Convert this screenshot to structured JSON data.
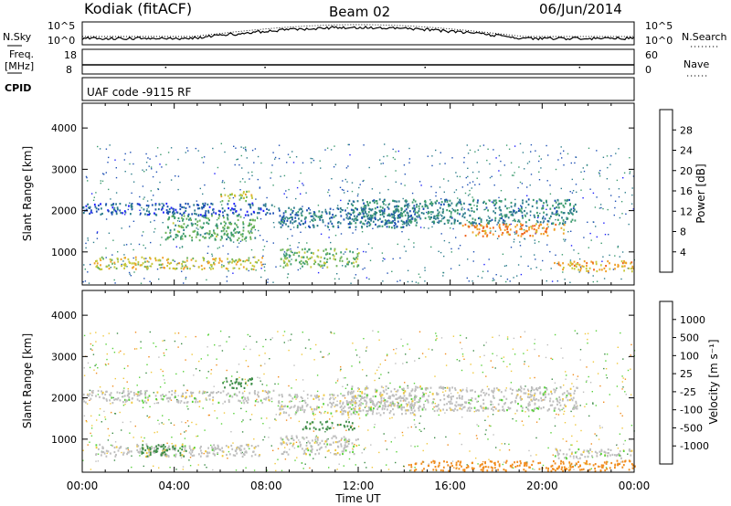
{
  "header": {
    "station": "Kodiak (fitACF)",
    "beam": "Beam 02",
    "date": "06/Jun/2014"
  },
  "top_panels": {
    "nsky": {
      "left_label": "N.Sky",
      "right_label": "N.Search",
      "top_tick": "10^5",
      "bottom_tick": "10^0"
    },
    "freq": {
      "left_label": "Freq.",
      "unit": "[MHz]",
      "ticks_left": [
        "18",
        "8"
      ],
      "right_label": "Nave",
      "ticks_right": [
        "60",
        "0"
      ]
    },
    "cpid": {
      "label": "CPID",
      "text": "UAF code -9115 RF"
    }
  },
  "x_axis": {
    "label": "Time UT",
    "ticks": [
      "00:00",
      "04:00",
      "08:00",
      "12:00",
      "16:00",
      "20:00",
      "00:00"
    ]
  },
  "power_colorbar": {
    "label": "Power [dB]",
    "ticks": [
      "28",
      "24",
      "20",
      "16",
      "12",
      "8",
      "4"
    ]
  },
  "velocity_colorbar": {
    "label": "Velocity [m s⁻¹]",
    "ticks": [
      "1000",
      "500",
      "100",
      "25",
      "-25",
      "-100",
      "-500",
      "-1000"
    ]
  },
  "colors": {
    "power": [
      "#1e1eff",
      "#1e50b4",
      "#2d7d8c",
      "#3c9b6e",
      "#6eb45a",
      "#c8c83c",
      "#f0a028",
      "#f0641e",
      "#dc1e14"
    ],
    "velocity": [
      "#e61414",
      "#f05014",
      "#f08c1e",
      "#f0c83c",
      "#bebebe",
      "#bebebe",
      "#5ad23c",
      "#3c8c46",
      "#2864a0",
      "#1e3cc8"
    ]
  },
  "chart_data": [
    {
      "type": "heatmap",
      "title": "Power",
      "xlabel": "Time UT",
      "ylabel": "Slant Range [km]",
      "xlim": [
        0,
        24
      ],
      "ylim": [
        200,
        4600
      ],
      "yticks": [
        1000,
        2000,
        3000,
        4000
      ],
      "xticks": [
        "00:00",
        "04:00",
        "08:00",
        "12:00",
        "16:00",
        "20:00",
        "00:00"
      ],
      "colorbar": {
        "label": "Power [dB]",
        "range": [
          0,
          32
        ],
        "ticks": [
          4,
          8,
          12,
          16,
          20,
          24,
          28
        ]
      },
      "echo_bands": [
        {
          "t": [
            0,
            8.3
          ],
          "range_km": [
            1900,
            2200
          ],
          "power_db": 6
        },
        {
          "t": [
            3.5,
            7.5
          ],
          "range_km": [
            1300,
            1900
          ],
          "power_db": 14
        },
        {
          "t": [
            6.0,
            7.4
          ],
          "range_km": [
            2250,
            2500
          ],
          "power_db": 18
        },
        {
          "t": [
            0.5,
            7.8
          ],
          "range_km": [
            600,
            900
          ],
          "power_db": 20
        },
        {
          "t": [
            8.5,
            14.5
          ],
          "range_km": [
            1600,
            2100
          ],
          "power_db": 8
        },
        {
          "t": [
            8.6,
            12.0
          ],
          "range_km": [
            650,
            1100
          ],
          "power_db": 16
        },
        {
          "t": [
            11.5,
            21.5
          ],
          "range_km": [
            1700,
            2300
          ],
          "power_db": 10
        },
        {
          "t": [
            16.5,
            21.0
          ],
          "range_km": [
            1400,
            1700
          ],
          "power_db": 24
        },
        {
          "t": [
            20.5,
            24.0
          ],
          "range_km": [
            550,
            800
          ],
          "power_db": 22
        }
      ]
    },
    {
      "type": "heatmap",
      "title": "Velocity",
      "xlabel": "Time UT",
      "ylabel": "Slant Range [km]",
      "xlim": [
        0,
        24
      ],
      "ylim": [
        200,
        4600
      ],
      "yticks": [
        1000,
        2000,
        3000,
        4000
      ],
      "xticks": [
        "00:00",
        "04:00",
        "08:00",
        "12:00",
        "16:00",
        "20:00",
        "00:00"
      ],
      "colorbar": {
        "label": "Velocity [m s⁻¹]",
        "ticks": [
          1000,
          500,
          100,
          25,
          -25,
          -100,
          -500,
          -1000
        ]
      },
      "echo_bands": [
        {
          "t": [
            0,
            8.3
          ],
          "range_km": [
            1900,
            2200
          ],
          "velocity": 0
        },
        {
          "t": [
            0.5,
            7.8
          ],
          "range_km": [
            600,
            900
          ],
          "velocity": 0
        },
        {
          "t": [
            2.5,
            4.5
          ],
          "range_km": [
            600,
            900
          ],
          "velocity": 200
        },
        {
          "t": [
            6.0,
            7.4
          ],
          "range_km": [
            2250,
            2500
          ],
          "velocity": 150
        },
        {
          "t": [
            8.5,
            14.5
          ],
          "range_km": [
            1600,
            2100
          ],
          "velocity": 0
        },
        {
          "t": [
            8.6,
            12.0
          ],
          "range_km": [
            650,
            1100
          ],
          "velocity": 0
        },
        {
          "t": [
            9.5,
            11.8
          ],
          "range_km": [
            1250,
            1450
          ],
          "velocity": 150
        },
        {
          "t": [
            11.5,
            21.5
          ],
          "range_km": [
            1700,
            2300
          ],
          "velocity": 0
        },
        {
          "t": [
            20.5,
            24.0
          ],
          "range_km": [
            550,
            800
          ],
          "velocity": 0
        },
        {
          "t": [
            14.0,
            24.0
          ],
          "range_km": [
            250,
            500
          ],
          "velocity": -200
        }
      ]
    }
  ]
}
